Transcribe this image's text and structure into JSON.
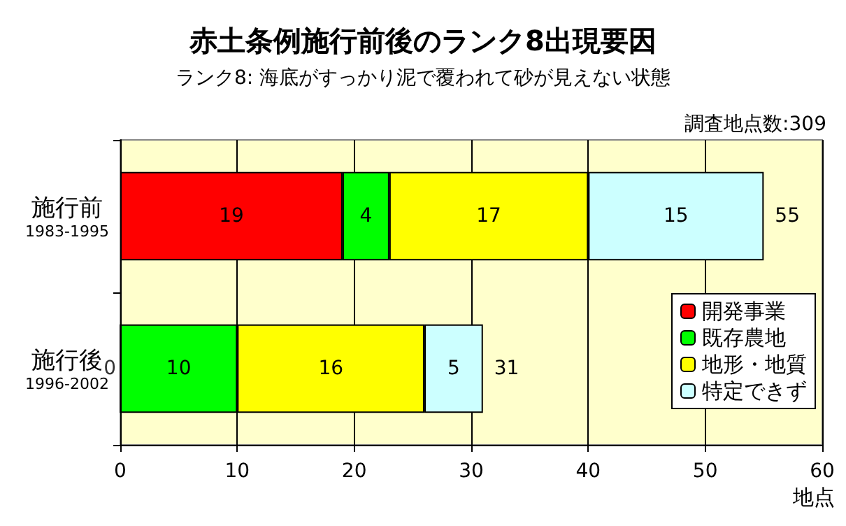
{
  "chart_data": {
    "type": "bar",
    "orientation": "horizontal",
    "stacked": true,
    "title": "赤土条例施行前後のランク8出現要因",
    "subtitle": "ランク8: 海底がすっかり泥で覆われて砂が見えない状態",
    "annotations": [
      "調査地点数:309",
      {
        "text": "0",
        "x": 0,
        "y": "施行後\n1996-2002"
      }
    ],
    "xlabel": "地点",
    "categories": [
      "施行前\n1983-1995",
      "施行後\n1996-2002"
    ],
    "series": [
      {
        "name": "開発事業",
        "color": "#ff0000",
        "values": [
          19,
          0
        ],
        "value_labels": [
          "19",
          null
        ]
      },
      {
        "name": "既存農地",
        "color": "#00ff00",
        "values": [
          4,
          10
        ],
        "value_labels": [
          "4",
          "10"
        ]
      },
      {
        "name": "地形・地質",
        "color": "#ffff00",
        "values": [
          17,
          16
        ],
        "value_labels": [
          "17",
          "16"
        ]
      },
      {
        "name": "特定できず",
        "color": "#ccffff",
        "values": [
          15,
          5
        ],
        "value_labels": [
          "15",
          "5"
        ]
      }
    ],
    "totals": [
      "55",
      "31"
    ],
    "xlim": [
      0,
      60
    ],
    "xticks": [
      0,
      10,
      20,
      30,
      40,
      50,
      60
    ],
    "grid": "x",
    "legend": "bottom right"
  }
}
